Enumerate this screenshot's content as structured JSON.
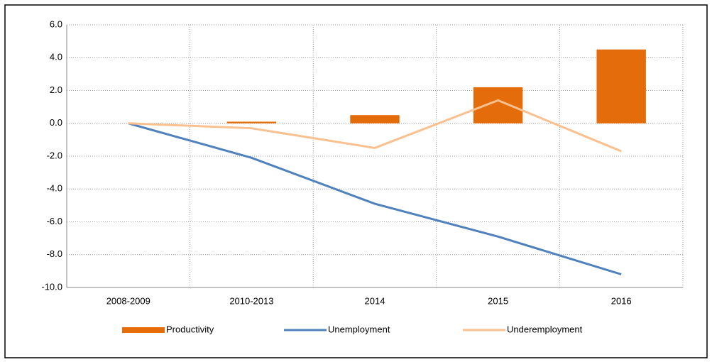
{
  "chart_data": {
    "type": "bar",
    "categories": [
      "2008-2009",
      "2010-2013",
      "2014",
      "2015",
      "2016"
    ],
    "series": [
      {
        "name": "Productivity",
        "type": "bar",
        "color": "#e46c0a",
        "values": [
          0,
          0.1,
          0.5,
          2.2,
          4.5
        ]
      },
      {
        "name": "Unemployment",
        "type": "line",
        "color": "#4f81bd",
        "values": [
          0,
          -2.1,
          -4.9,
          -6.9,
          -9.2
        ]
      },
      {
        "name": "Underemployment",
        "type": "line",
        "color": "#fac090",
        "values": [
          0,
          -0.3,
          -1.5,
          1.4,
          -1.7
        ]
      }
    ],
    "ylim": [
      -10,
      6
    ],
    "yticks": [
      {
        "value": -10,
        "label": "-10.0"
      },
      {
        "value": -8,
        "label": "-8.0"
      },
      {
        "value": -6,
        "label": "-6.0"
      },
      {
        "value": -4,
        "label": "-4.0"
      },
      {
        "value": -2,
        "label": "-2.0"
      },
      {
        "value": 0,
        "label": "0.0"
      },
      {
        "value": 2,
        "label": "2.0"
      },
      {
        "value": 4,
        "label": "4.0"
      },
      {
        "value": 6,
        "label": "6.0"
      }
    ],
    "grid": true,
    "legend": "bottom"
  }
}
